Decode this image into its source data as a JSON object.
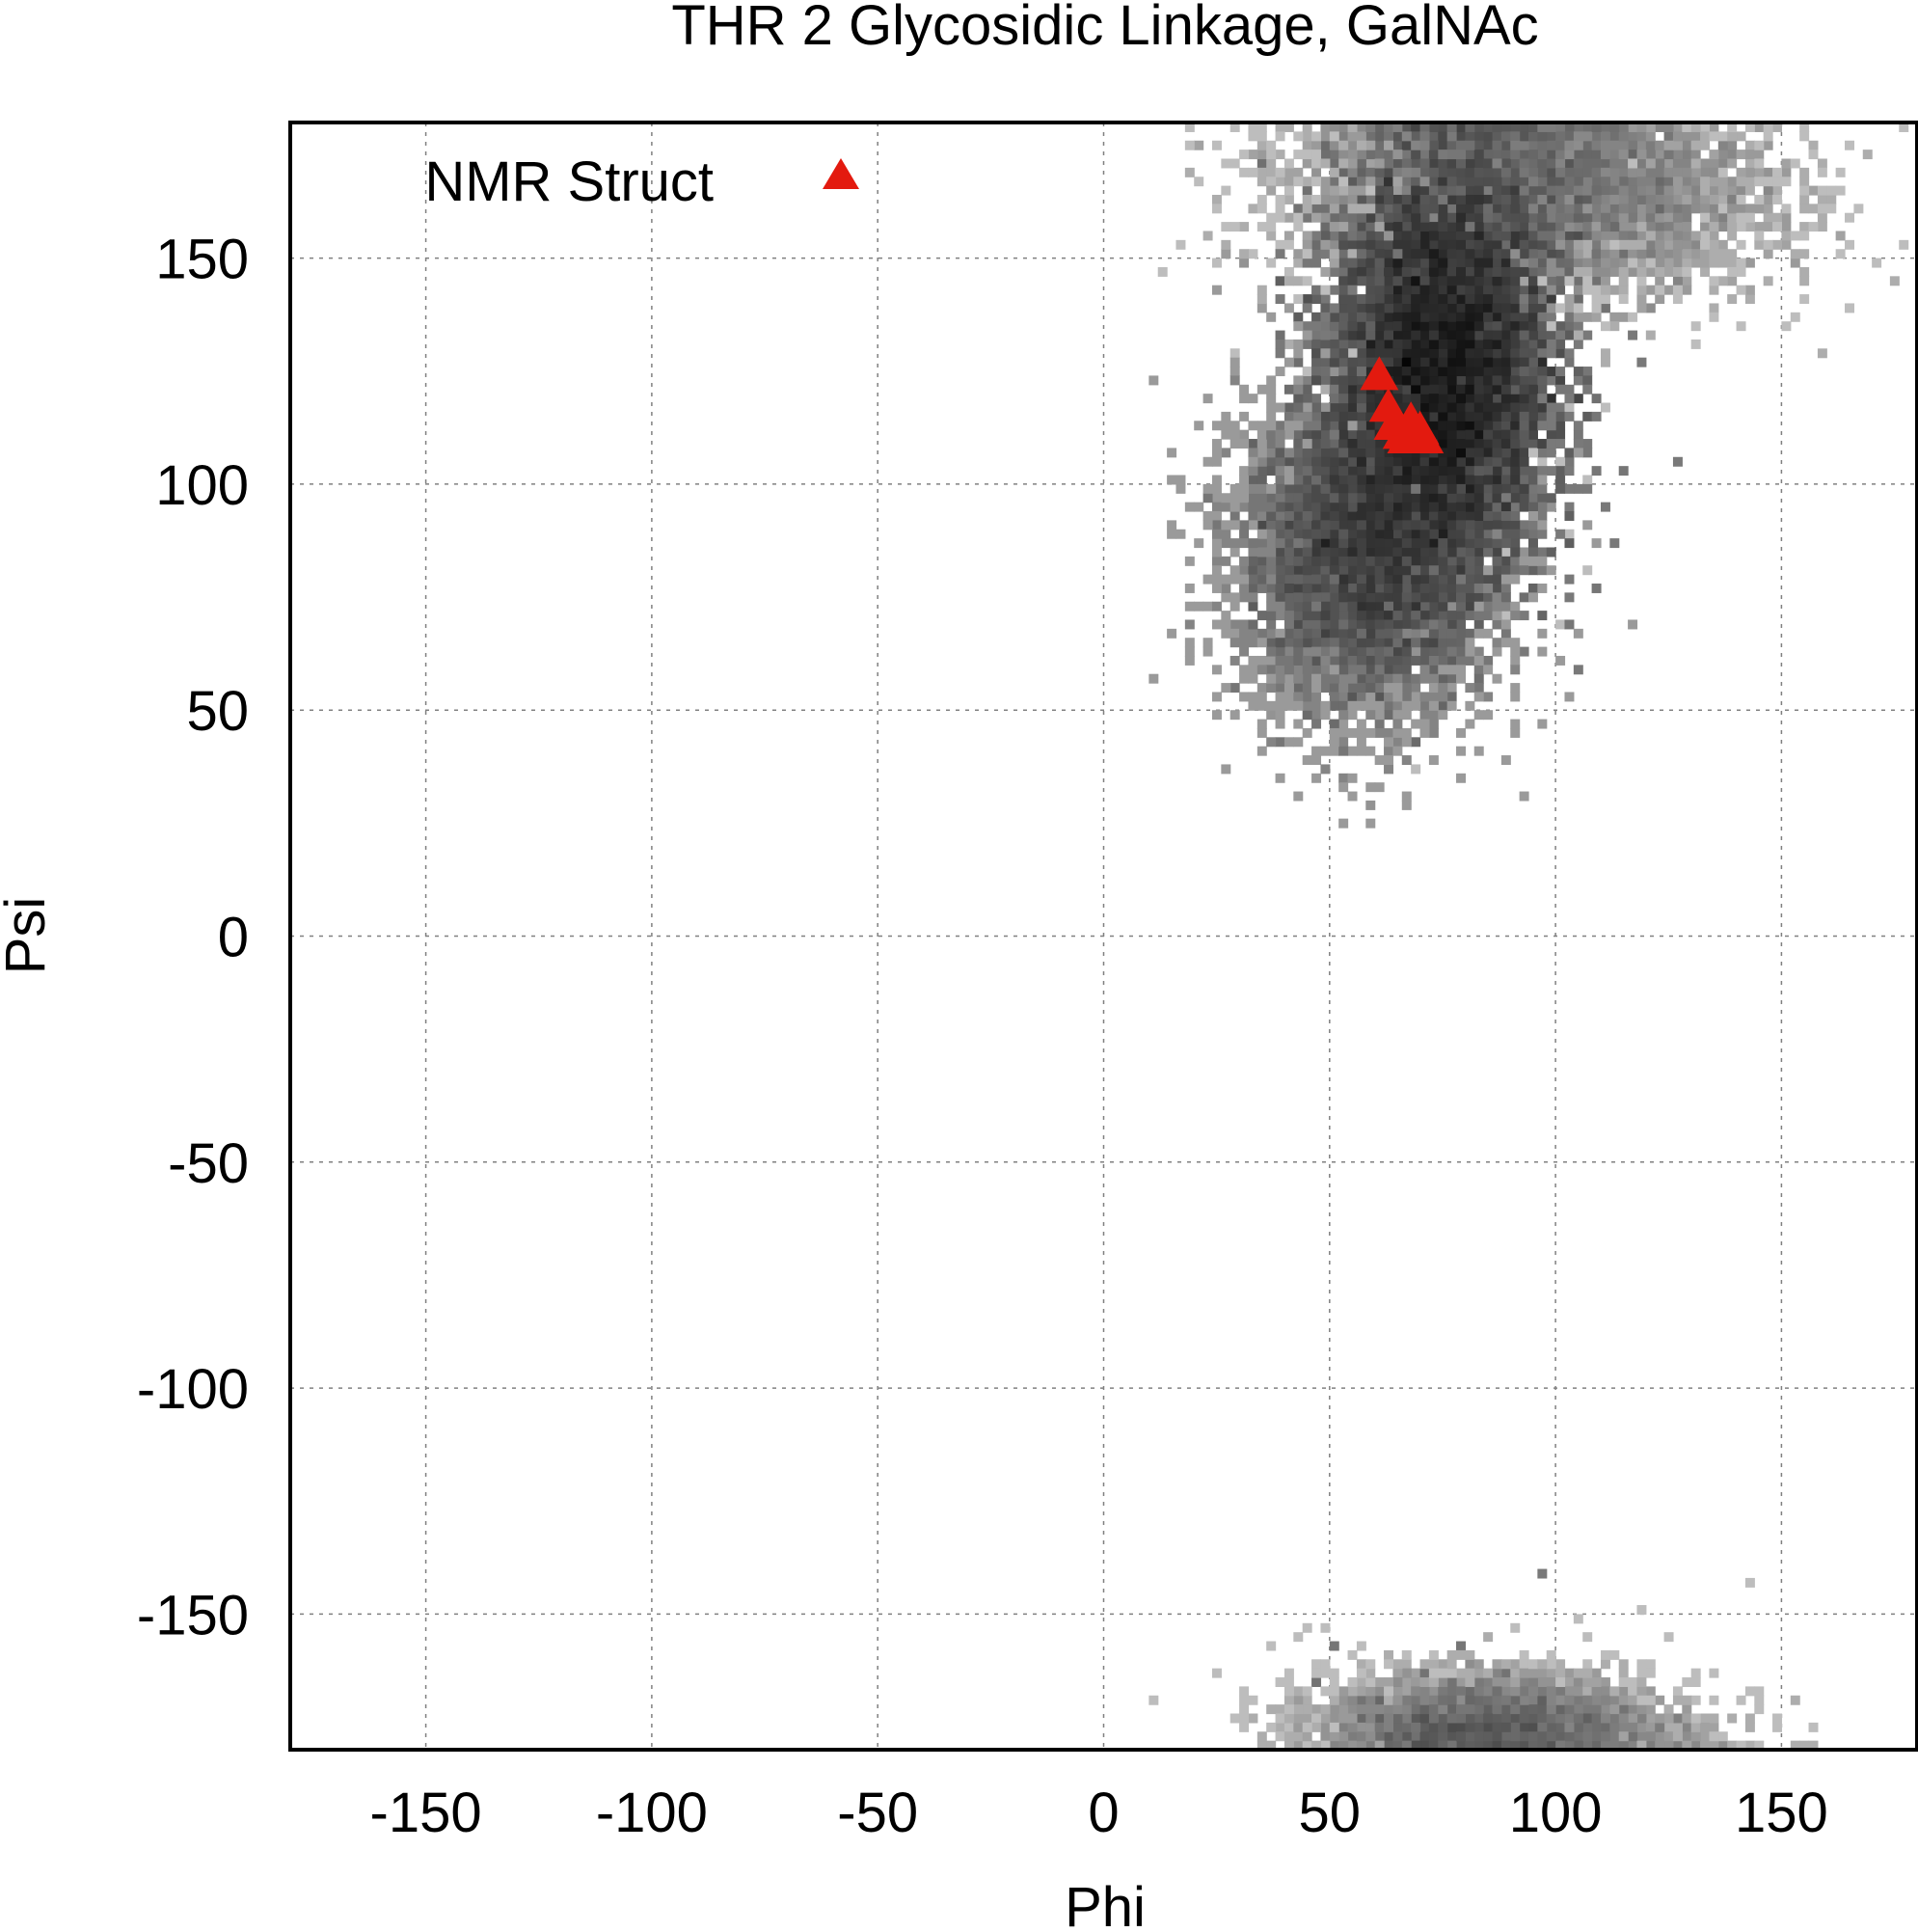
{
  "chart_data": {
    "type": "scatter",
    "title": "THR 2 Glycosidic Linkage, GalNAc",
    "xlabel": "Phi",
    "ylabel": "Psi",
    "xlim": [
      -180,
      180
    ],
    "ylim": [
      -180,
      180
    ],
    "xticks": [
      -150,
      -100,
      -50,
      0,
      50,
      100,
      150
    ],
    "yticks": [
      -150,
      -100,
      -50,
      0,
      50,
      100,
      150
    ],
    "xtick_labels": [
      "-150",
      "-100",
      "-50",
      "0",
      "50",
      "100",
      "150"
    ],
    "ytick_labels": [
      "-150",
      "-100",
      "-50",
      "0",
      "50",
      "100",
      "150"
    ],
    "grid": true,
    "legend_position": "top-left",
    "density_background": {
      "description_color": "#000000",
      "clusters": [
        {
          "phi_center": 75,
          "psi_center": 125,
          "phi_spread": 12,
          "psi_spread": 22,
          "weight": 1.0
        },
        {
          "phi_center": 58,
          "psi_center": 85,
          "phi_spread": 14,
          "psi_spread": 18,
          "weight": 0.35
        },
        {
          "phi_center": 95,
          "psi_center": 165,
          "phi_spread": 25,
          "psi_spread": 12,
          "weight": 0.12
        },
        {
          "phi_center": 85,
          "psi_center": -175,
          "phi_spread": 18,
          "psi_spread": 6,
          "weight": 0.06
        }
      ]
    },
    "series": [
      {
        "name": "NMR Struct",
        "marker": "triangle",
        "color": "#e31a0f",
        "points": [
          {
            "x": 61,
            "y": 124
          },
          {
            "x": 63,
            "y": 117
          },
          {
            "x": 64,
            "y": 113
          },
          {
            "x": 66,
            "y": 111
          },
          {
            "x": 68,
            "y": 114
          },
          {
            "x": 70,
            "y": 112
          },
          {
            "x": 71,
            "y": 110
          },
          {
            "x": 67,
            "y": 110
          }
        ]
      }
    ]
  }
}
